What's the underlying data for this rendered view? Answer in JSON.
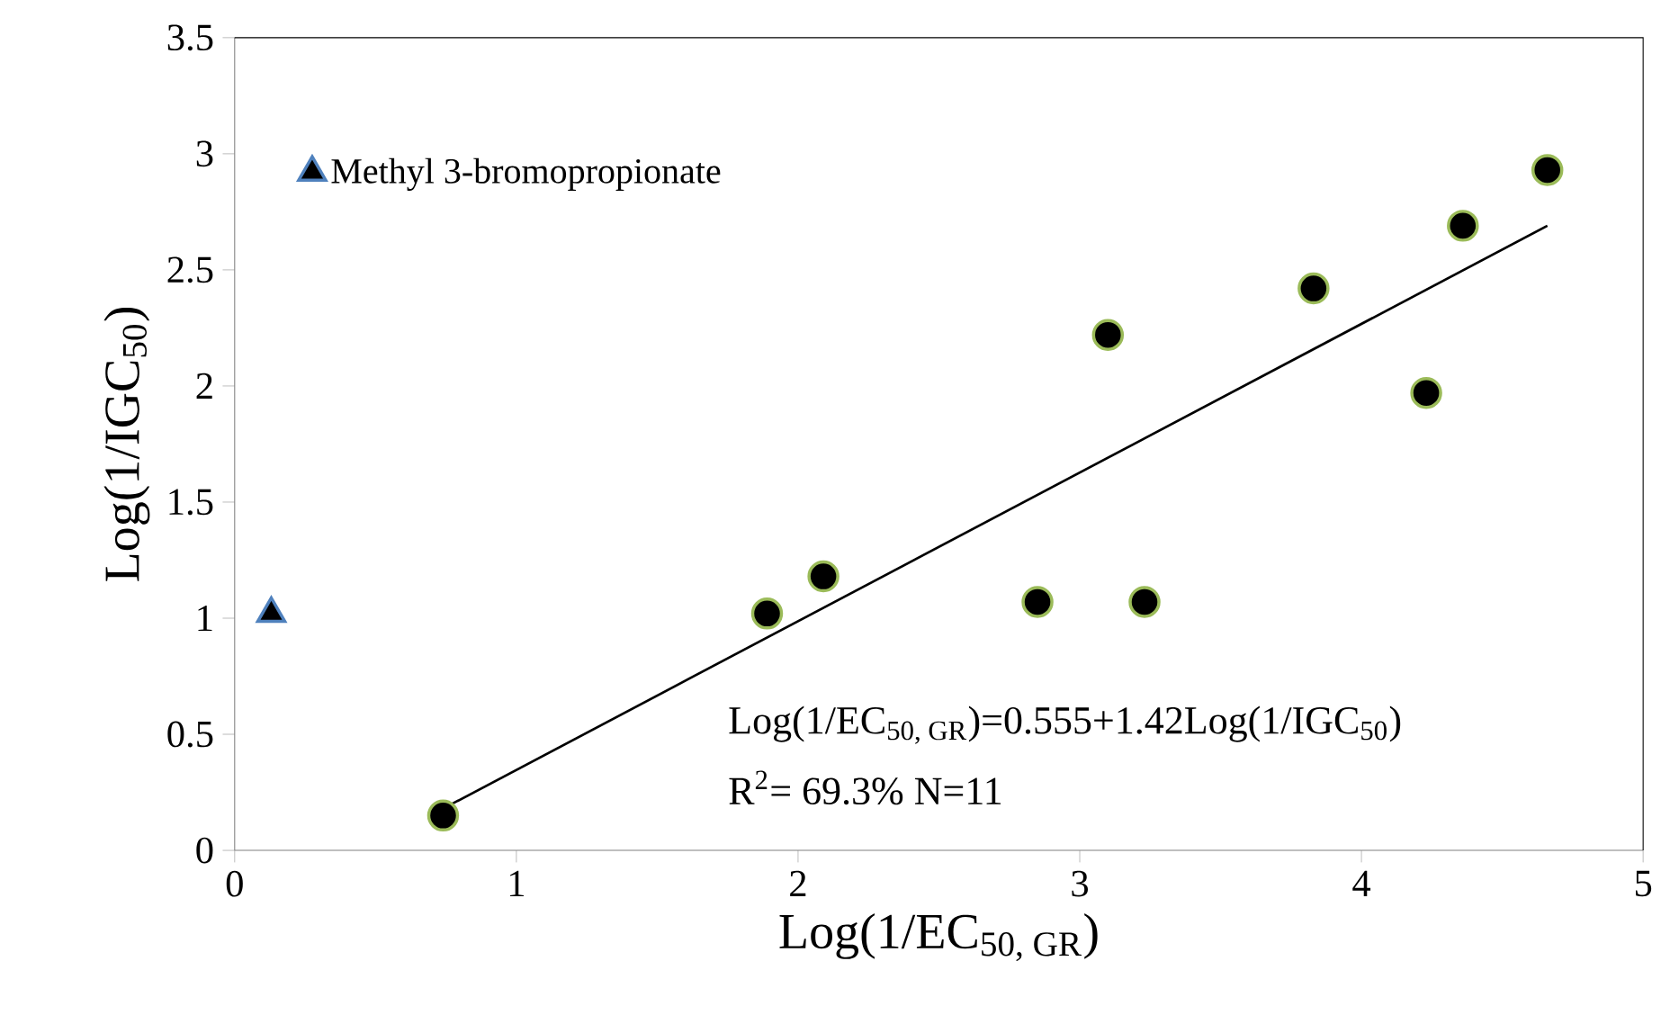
{
  "chart_data": {
    "type": "scatter",
    "xlabel": "Log(1/EC$_{50, GR}$)",
    "ylabel": "Log(1/IGC$_{50}$)",
    "xlim": [
      0,
      5
    ],
    "ylim": [
      0,
      3.5
    ],
    "xticks": [
      0,
      1,
      2,
      3,
      4,
      5
    ],
    "yticks": [
      0,
      0.5,
      1,
      1.5,
      2,
      2.5,
      3,
      3.5
    ],
    "grid": false,
    "legend": "top left",
    "series": [
      {
        "marker": "circle",
        "color": "#000000",
        "x": [
          0.74,
          1.89,
          2.09,
          2.85,
          3.23,
          3.1,
          3.83,
          4.23,
          4.36,
          4.66
        ],
        "values": [
          0.15,
          1.02,
          1.18,
          1.07,
          1.07,
          2.22,
          2.42,
          1.97,
          2.69,
          2.93
        ]
      },
      {
        "type": "scatter",
        "marker": "triangle",
        "name": "Methyl 3-bromopropionate",
        "color": "#000000",
        "x": [
          0.13
        ],
        "values": [
          1.02
        ]
      },
      {
        "type": "line",
        "marker": "none",
        "color": "#000000",
        "x": [
          0.74,
          4.66
        ],
        "values": [
          0.18,
          2.69
        ]
      }
    ],
    "annotations": [
      "Log(1/EC$_{50, GR}$)=0.555+1.42Log(1/IGC$_{50}$)",
      "R$^{2}$= 69.3%   N=11"
    ]
  }
}
